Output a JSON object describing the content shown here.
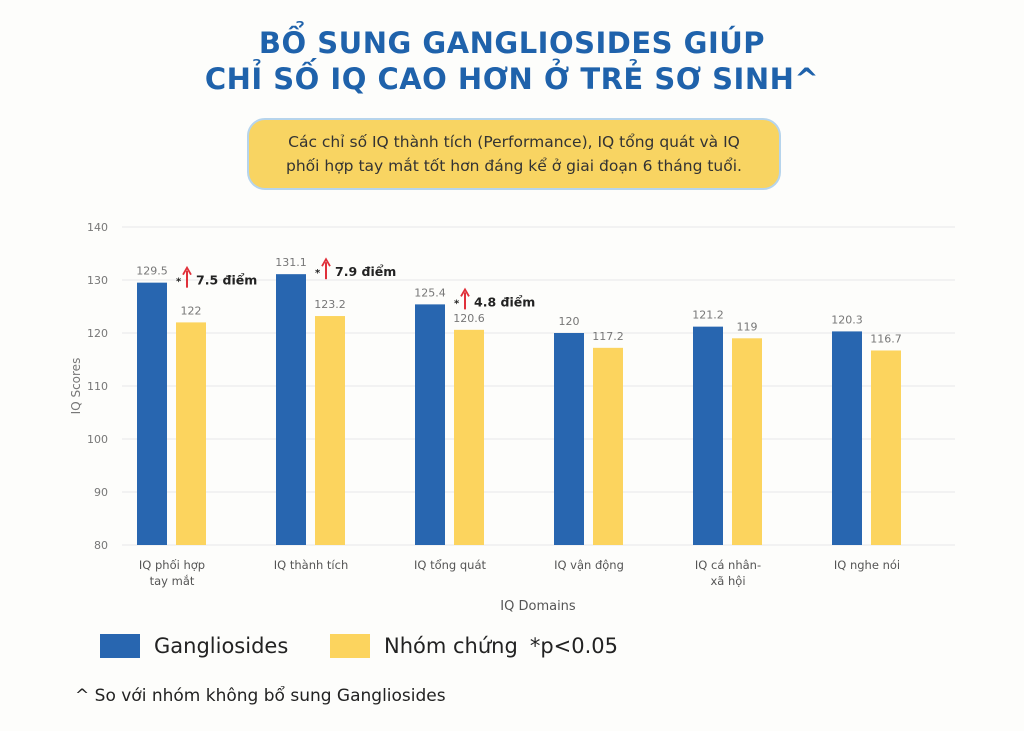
{
  "title": {
    "line1": "BỔ SUNG GANGLIOSIDES GIÚP",
    "line2": "CHỈ SỐ IQ CAO HƠN Ở TRẺ SƠ SINH^"
  },
  "callout": {
    "line1": "Các chỉ số IQ thành tích (Performance), IQ tổng quát và IQ",
    "line2": "phối hợp tay mắt tốt hơn đáng kể ở giai đoạn 6 tháng tuổi."
  },
  "chart_data": {
    "type": "bar",
    "xlabel": "IQ Domains",
    "ylabel": "IQ Scores",
    "ylim": [
      80,
      140
    ],
    "yticks": [
      "80",
      "90",
      "100",
      "110",
      "120",
      "130",
      "140"
    ],
    "grid": true,
    "legend_position": "bottom-left",
    "categories": [
      [
        "IQ phối hợp",
        "tay mắt"
      ],
      [
        "IQ thành tích"
      ],
      [
        "IQ tổng quát"
      ],
      [
        "IQ vận động"
      ],
      [
        "IQ cá nhân-",
        "xã hội"
      ],
      [
        "IQ nghe nói"
      ]
    ],
    "series": [
      {
        "name": "Gangliosides",
        "color": "#2866b0",
        "values": [
          129.5,
          131.1,
          125.4,
          120,
          121.2,
          120.3
        ],
        "labels": [
          "129.5",
          "131.1",
          "125.4",
          "120",
          "121.2",
          "120.3"
        ]
      },
      {
        "name": "Nhóm chứng",
        "color": "#fcd45e",
        "values": [
          122,
          123.2,
          120.6,
          117.2,
          119,
          116.7
        ],
        "labels": [
          "122",
          "123.2",
          "120.6",
          "117.2",
          "119",
          "116.7"
        ]
      }
    ],
    "annotations": [
      {
        "category_index": 0,
        "marker": "*",
        "text": "7.5 điểm",
        "arrow_color": "#e0303a"
      },
      {
        "category_index": 1,
        "marker": "*",
        "text": "7.9 điểm",
        "arrow_color": "#e0303a"
      },
      {
        "category_index": 2,
        "marker": "*",
        "text": "4.8 điểm",
        "arrow_color": "#e0303a"
      }
    ]
  },
  "legend": {
    "items": [
      "Gangliosides",
      "Nhóm chứng"
    ],
    "note": "*p<0.05"
  },
  "footnote": "^ So với nhóm không bổ sung Gangliosides"
}
